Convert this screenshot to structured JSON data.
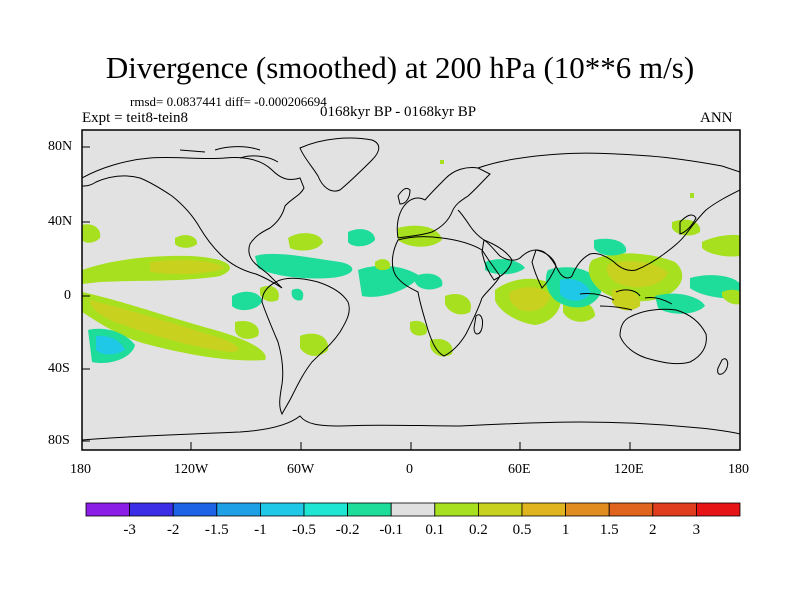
{
  "header": {
    "title": "Divergence (smoothed) at 200 hPa (10**6 m/s)",
    "stats": "rmsd= 0.0837441 diff= -0.000206694",
    "experiment": "Expt = teit8-tein8",
    "period": "0168kyr BP - 0168kyr BP",
    "season": "ANN"
  },
  "axes": {
    "lat_labels": [
      "80N",
      "40N",
      "0",
      "40S",
      "80S"
    ],
    "lon_labels": [
      "180",
      "120W",
      "60W",
      "0",
      "60E",
      "120E",
      "180"
    ]
  },
  "colorbar": {
    "labels": [
      "-3",
      "-2",
      "-1.5",
      "-1",
      "-0.5",
      "-0.2",
      "-0.1",
      "0.1",
      "0.2",
      "0.5",
      "1",
      "1.5",
      "2",
      "3"
    ],
    "colors": [
      "#8a1ee6",
      "#3c2ee6",
      "#1e63e6",
      "#1ea0e6",
      "#1ec8e6",
      "#1ee6d2",
      "#1edc9a",
      "#e0e0e0",
      "#a6e01e",
      "#c8d21e",
      "#e0b41e",
      "#e08c1e",
      "#e0641e",
      "#e03c1e",
      "#e61414"
    ]
  },
  "map": {
    "background": "#e2e2e2",
    "coast_color": "#000000"
  }
}
